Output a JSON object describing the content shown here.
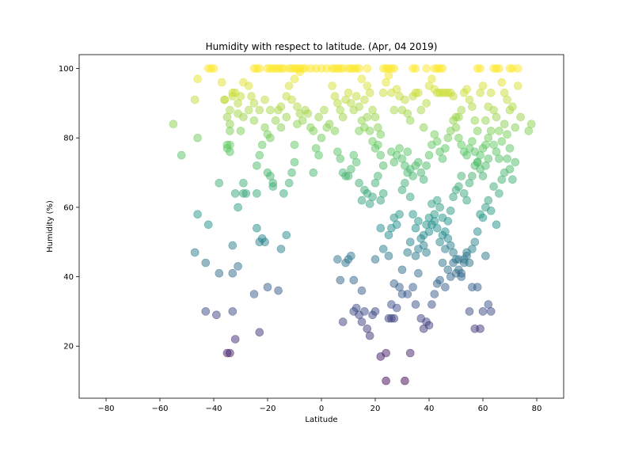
{
  "chart_data": {
    "type": "scatter",
    "title": "Humidity with respect to latitude. (Apr, 04 2019)",
    "xlabel": "Latitude",
    "ylabel": "Humidity (%)",
    "xlim": [
      -90,
      90
    ],
    "ylim": [
      5,
      104
    ],
    "xticks": [
      -80,
      -60,
      -40,
      -20,
      0,
      20,
      40,
      60,
      80
    ],
    "yticks": [
      20,
      40,
      60,
      80,
      100
    ],
    "colormap": "viridis",
    "color_by": "y",
    "marker_alpha": 0.5,
    "grid": false,
    "points": [
      [
        -55,
        84
      ],
      [
        -52,
        75
      ],
      [
        -46,
        97
      ],
      [
        -47,
        91
      ],
      [
        -46,
        80
      ],
      [
        -46,
        58
      ],
      [
        -47,
        47
      ],
      [
        -43,
        44
      ],
      [
        -42,
        55
      ],
      [
        -43,
        30
      ],
      [
        -39,
        29
      ],
      [
        -38,
        41
      ],
      [
        -38,
        67
      ],
      [
        -37,
        96
      ],
      [
        -35,
        77
      ],
      [
        -34,
        76
      ],
      [
        -34,
        78
      ],
      [
        -34,
        88
      ],
      [
        -33,
        92
      ],
      [
        -32,
        64
      ],
      [
        -31,
        60
      ],
      [
        -33,
        49
      ],
      [
        -33,
        41
      ],
      [
        -31,
        43
      ],
      [
        -32,
        22
      ],
      [
        -33,
        30
      ],
      [
        -35,
        18
      ],
      [
        -34,
        18
      ],
      [
        -29,
        64
      ],
      [
        -28,
        64
      ],
      [
        -30,
        82
      ],
      [
        -29,
        67
      ],
      [
        -25,
        35
      ],
      [
        -24,
        54
      ],
      [
        -23,
        50
      ],
      [
        -22,
        51
      ],
      [
        -23,
        24
      ],
      [
        -21,
        50
      ],
      [
        -20,
        37
      ],
      [
        -16,
        36
      ],
      [
        -15,
        48
      ],
      [
        -13,
        52
      ],
      [
        -24,
        64
      ],
      [
        -24,
        72
      ],
      [
        -23,
        75
      ],
      [
        -22,
        78
      ],
      [
        -20,
        70
      ],
      [
        -19,
        69
      ],
      [
        -18,
        66
      ],
      [
        -18,
        67
      ],
      [
        -14,
        64
      ],
      [
        -12,
        67
      ],
      [
        -11,
        70
      ],
      [
        -10,
        73
      ],
      [
        -10,
        78
      ],
      [
        -9,
        84
      ],
      [
        -8,
        87
      ],
      [
        -6,
        88
      ],
      [
        -4,
        83
      ],
      [
        -3,
        70
      ],
      [
        -2,
        77
      ],
      [
        -1,
        75
      ],
      [
        0,
        80
      ],
      [
        2,
        83
      ],
      [
        -21,
        83
      ],
      [
        -20,
        81
      ],
      [
        -19,
        80
      ],
      [
        -16,
        88
      ],
      [
        -15,
        89
      ],
      [
        -13,
        92
      ],
      [
        -12,
        95
      ],
      [
        -10,
        97
      ],
      [
        -8,
        99
      ],
      [
        -6,
        100
      ],
      [
        -4,
        100
      ],
      [
        -2,
        100
      ],
      [
        0,
        100
      ],
      [
        2,
        100
      ],
      [
        -25,
        90
      ],
      [
        -26,
        92
      ],
      [
        -27,
        95
      ],
      [
        -29,
        96
      ],
      [
        -30,
        92
      ],
      [
        -31,
        90
      ],
      [
        -33,
        93
      ],
      [
        -34,
        84
      ],
      [
        -35,
        86
      ],
      [
        -36,
        91
      ],
      [
        -40,
        100
      ],
      [
        -41,
        100
      ],
      [
        -42,
        100
      ],
      [
        -25,
        100
      ],
      [
        -24,
        100
      ],
      [
        -23,
        100
      ],
      [
        -20,
        100
      ],
      [
        -19,
        100
      ],
      [
        -18,
        100
      ],
      [
        -17,
        100
      ],
      [
        -16,
        100
      ],
      [
        -15,
        100
      ],
      [
        -14,
        100
      ],
      [
        -12,
        100
      ],
      [
        -11,
        100
      ],
      [
        -10,
        100
      ],
      [
        -9,
        100
      ],
      [
        -8,
        100
      ],
      [
        -7,
        100
      ],
      [
        4,
        100
      ],
      [
        5,
        100
      ],
      [
        6,
        100
      ],
      [
        7,
        100
      ],
      [
        8,
        100
      ],
      [
        10,
        100
      ],
      [
        11,
        100
      ],
      [
        12,
        100
      ],
      [
        13,
        100
      ],
      [
        14,
        100
      ],
      [
        17,
        100
      ],
      [
        23,
        100
      ],
      [
        24,
        100
      ],
      [
        25,
        100
      ],
      [
        26,
        100
      ],
      [
        27,
        100
      ],
      [
        34,
        100
      ],
      [
        35,
        100
      ],
      [
        39,
        100
      ],
      [
        42,
        100
      ],
      [
        43,
        100
      ],
      [
        44,
        100
      ],
      [
        45,
        100
      ],
      [
        58,
        100
      ],
      [
        59,
        100
      ],
      [
        64,
        100
      ],
      [
        65,
        100
      ],
      [
        66,
        100
      ],
      [
        70,
        100
      ],
      [
        71,
        100
      ],
      [
        73,
        100
      ],
      [
        4,
        95
      ],
      [
        5,
        92
      ],
      [
        6,
        90
      ],
      [
        7,
        88
      ],
      [
        8,
        86
      ],
      [
        9,
        91
      ],
      [
        10,
        93
      ],
      [
        11,
        90
      ],
      [
        12,
        88
      ],
      [
        13,
        92
      ],
      [
        14,
        89
      ],
      [
        15,
        97
      ],
      [
        16,
        91
      ],
      [
        17,
        95
      ],
      [
        18,
        93
      ],
      [
        19,
        88
      ],
      [
        20,
        86
      ],
      [
        21,
        83
      ],
      [
        22,
        81
      ],
      [
        23,
        93
      ],
      [
        24,
        96
      ],
      [
        25,
        98
      ],
      [
        26,
        93
      ],
      [
        27,
        88
      ],
      [
        28,
        94
      ],
      [
        29,
        92
      ],
      [
        30,
        88
      ],
      [
        31,
        91
      ],
      [
        32,
        87
      ],
      [
        33,
        85
      ],
      [
        34,
        92
      ],
      [
        35,
        93
      ],
      [
        36,
        93
      ],
      [
        37,
        88
      ],
      [
        38,
        83
      ],
      [
        39,
        90
      ],
      [
        40,
        95
      ],
      [
        41,
        97
      ],
      [
        42,
        94
      ],
      [
        43,
        93
      ],
      [
        44,
        93
      ],
      [
        45,
        93
      ],
      [
        46,
        93
      ],
      [
        47,
        93
      ],
      [
        48,
        93
      ],
      [
        49,
        92
      ],
      [
        50,
        86
      ],
      [
        51,
        86
      ],
      [
        52,
        88
      ],
      [
        53,
        93
      ],
      [
        54,
        94
      ],
      [
        55,
        91
      ],
      [
        56,
        89
      ],
      [
        57,
        85
      ],
      [
        58,
        82
      ],
      [
        59,
        93
      ],
      [
        60,
        95
      ],
      [
        61,
        85
      ],
      [
        62,
        89
      ],
      [
        63,
        93
      ],
      [
        64,
        88
      ],
      [
        65,
        86
      ],
      [
        66,
        82
      ],
      [
        67,
        96
      ],
      [
        68,
        93
      ],
      [
        69,
        91
      ],
      [
        70,
        88
      ],
      [
        71,
        89
      ],
      [
        72,
        83
      ],
      [
        73,
        95
      ],
      [
        74,
        86
      ],
      [
        77,
        82
      ],
      [
        78,
        84
      ],
      [
        5,
        82
      ],
      [
        6,
        76
      ],
      [
        7,
        74
      ],
      [
        8,
        70
      ],
      [
        9,
        69
      ],
      [
        10,
        69
      ],
      [
        11,
        71
      ],
      [
        12,
        75
      ],
      [
        13,
        73
      ],
      [
        14,
        67
      ],
      [
        15,
        62
      ],
      [
        16,
        65
      ],
      [
        17,
        64
      ],
      [
        18,
        61
      ],
      [
        19,
        63
      ],
      [
        20,
        67
      ],
      [
        21,
        69
      ],
      [
        22,
        62
      ],
      [
        23,
        64
      ],
      [
        25,
        52
      ],
      [
        26,
        54
      ],
      [
        27,
        57
      ],
      [
        28,
        55
      ],
      [
        29,
        58
      ],
      [
        30,
        65
      ],
      [
        31,
        67
      ],
      [
        32,
        70
      ],
      [
        33,
        63
      ],
      [
        34,
        58
      ],
      [
        35,
        54
      ],
      [
        36,
        56
      ],
      [
        37,
        51
      ],
      [
        38,
        49
      ],
      [
        39,
        47
      ],
      [
        40,
        53
      ],
      [
        41,
        55
      ],
      [
        42,
        58
      ],
      [
        43,
        62
      ],
      [
        44,
        60
      ],
      [
        45,
        57
      ],
      [
        46,
        53
      ],
      [
        47,
        51
      ],
      [
        48,
        49
      ],
      [
        49,
        47
      ],
      [
        50,
        45
      ],
      [
        51,
        42
      ],
      [
        52,
        41
      ],
      [
        53,
        45
      ],
      [
        54,
        47
      ],
      [
        55,
        44
      ],
      [
        56,
        48
      ],
      [
        57,
        50
      ],
      [
        58,
        53
      ],
      [
        59,
        58
      ],
      [
        60,
        57
      ],
      [
        61,
        60
      ],
      [
        62,
        62
      ],
      [
        63,
        59
      ],
      [
        64,
        66
      ],
      [
        65,
        55
      ],
      [
        66,
        64
      ],
      [
        67,
        68
      ],
      [
        68,
        70
      ],
      [
        69,
        74
      ],
      [
        70,
        71
      ],
      [
        71,
        68
      ],
      [
        72,
        73
      ],
      [
        6,
        45
      ],
      [
        7,
        39
      ],
      [
        9,
        44
      ],
      [
        10,
        45
      ],
      [
        11,
        46
      ],
      [
        12,
        39
      ],
      [
        13,
        31
      ],
      [
        14,
        29
      ],
      [
        15,
        27
      ],
      [
        16,
        30
      ],
      [
        17,
        25
      ],
      [
        18,
        23
      ],
      [
        19,
        29
      ],
      [
        20,
        30
      ],
      [
        22,
        17
      ],
      [
        24,
        18
      ],
      [
        25,
        28
      ],
      [
        26,
        32
      ],
      [
        27,
        28
      ],
      [
        28,
        31
      ],
      [
        29,
        37
      ],
      [
        30,
        35
      ],
      [
        31,
        10
      ],
      [
        32,
        35
      ],
      [
        33,
        18
      ],
      [
        34,
        37
      ],
      [
        35,
        32
      ],
      [
        36,
        41
      ],
      [
        37,
        28
      ],
      [
        38,
        25
      ],
      [
        39,
        27
      ],
      [
        40,
        26
      ],
      [
        41,
        32
      ],
      [
        42,
        35
      ],
      [
        43,
        38
      ],
      [
        44,
        39
      ],
      [
        45,
        44
      ],
      [
        46,
        37
      ],
      [
        47,
        42
      ],
      [
        48,
        40
      ],
      [
        49,
        44
      ],
      [
        50,
        41
      ],
      [
        51,
        45
      ],
      [
        52,
        40
      ],
      [
        53,
        44
      ],
      [
        54,
        46
      ],
      [
        55,
        30
      ],
      [
        56,
        37
      ],
      [
        57,
        25
      ],
      [
        58,
        37
      ],
      [
        59,
        25
      ],
      [
        60,
        30
      ],
      [
        61,
        46
      ],
      [
        62,
        32
      ],
      [
        63,
        30
      ],
      [
        24,
        10
      ],
      [
        26,
        28
      ],
      [
        15,
        36
      ],
      [
        12,
        30
      ],
      [
        8,
        27
      ],
      [
        20,
        45
      ],
      [
        22,
        54
      ],
      [
        23,
        48
      ],
      [
        25,
        46
      ],
      [
        27,
        38
      ],
      [
        30,
        42
      ],
      [
        32,
        47
      ],
      [
        33,
        50
      ],
      [
        35,
        46
      ],
      [
        36,
        48
      ],
      [
        38,
        52
      ],
      [
        39,
        55
      ],
      [
        40,
        57
      ],
      [
        41,
        61
      ],
      [
        42,
        56
      ],
      [
        43,
        54
      ],
      [
        44,
        50
      ],
      [
        45,
        52
      ],
      [
        46,
        48
      ],
      [
        47,
        56
      ],
      [
        48,
        59
      ],
      [
        49,
        63
      ],
      [
        50,
        65
      ],
      [
        51,
        66
      ],
      [
        52,
        69
      ],
      [
        53,
        64
      ],
      [
        54,
        62
      ],
      [
        55,
        67
      ],
      [
        56,
        69
      ],
      [
        57,
        72
      ],
      [
        58,
        73
      ],
      [
        59,
        75
      ],
      [
        60,
        77
      ],
      [
        61,
        78
      ],
      [
        62,
        80
      ],
      [
        63,
        82
      ],
      [
        64,
        78
      ],
      [
        65,
        76
      ],
      [
        66,
        74
      ],
      [
        67,
        79
      ],
      [
        68,
        84
      ],
      [
        69,
        81
      ],
      [
        70,
        77
      ],
      [
        26,
        76
      ],
      [
        27,
        73
      ],
      [
        28,
        75
      ],
      [
        29,
        77
      ],
      [
        30,
        74
      ],
      [
        31,
        72
      ],
      [
        32,
        76
      ],
      [
        33,
        71
      ],
      [
        34,
        69
      ],
      [
        35,
        72
      ],
      [
        36,
        73
      ],
      [
        37,
        70
      ],
      [
        38,
        68
      ],
      [
        39,
        72
      ],
      [
        40,
        75
      ],
      [
        41,
        78
      ],
      [
        42,
        81
      ],
      [
        43,
        79
      ],
      [
        44,
        76
      ],
      [
        45,
        74
      ],
      [
        46,
        77
      ],
      [
        47,
        80
      ],
      [
        48,
        82
      ],
      [
        49,
        85
      ],
      [
        50,
        83
      ],
      [
        51,
        80
      ],
      [
        52,
        78
      ],
      [
        53,
        76
      ],
      [
        54,
        75
      ],
      [
        55,
        77
      ],
      [
        56,
        79
      ],
      [
        57,
        76
      ],
      [
        58,
        73
      ],
      [
        59,
        71
      ],
      [
        60,
        69
      ],
      [
        61,
        72
      ],
      [
        62,
        74
      ],
      [
        14,
        82
      ],
      [
        15,
        85
      ],
      [
        16,
        83
      ],
      [
        17,
        86
      ],
      [
        18,
        82
      ],
      [
        19,
        79
      ],
      [
        20,
        77
      ],
      [
        21,
        78
      ],
      [
        22,
        75
      ],
      [
        23,
        72
      ],
      [
        -3,
        82
      ],
      [
        -1,
        86
      ],
      [
        1,
        88
      ],
      [
        3,
        84
      ],
      [
        -5,
        87
      ],
      [
        -7,
        85
      ],
      [
        -9,
        89
      ],
      [
        -11,
        91
      ],
      [
        -13,
        86
      ],
      [
        -15,
        83
      ],
      [
        -17,
        85
      ],
      [
        -19,
        88
      ],
      [
        -21,
        91
      ],
      [
        -23,
        88
      ],
      [
        -25,
        85
      ],
      [
        -27,
        88
      ],
      [
        -29,
        86
      ],
      [
        -31,
        87
      ],
      [
        -32,
        93
      ],
      [
        -34,
        82
      ],
      [
        -35,
        78
      ],
      [
        -36,
        91
      ]
    ]
  }
}
